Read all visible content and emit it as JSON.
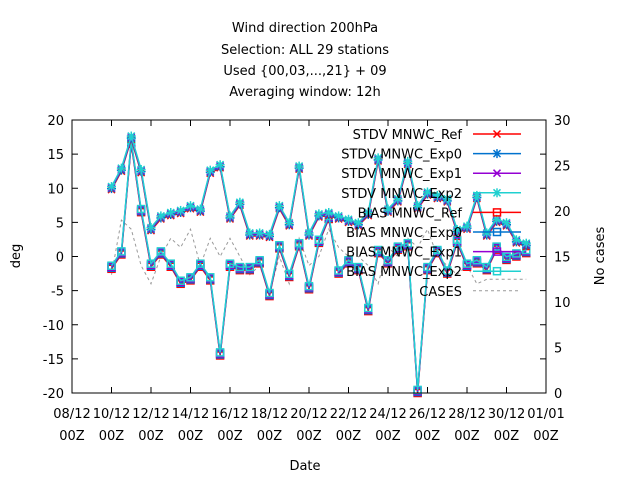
{
  "chart_data": {
    "type": "line",
    "title_lines": [
      "Wind direction 200hPa",
      "Selection: ALL      29 stations",
      "Used {00,03,...,21} + 09",
      "Averaging window: 12h"
    ],
    "xlabel": "Date",
    "ylabel": "deg",
    "y2label": "No cases",
    "ylim": [
      -20,
      20
    ],
    "y2lim": [
      0,
      30
    ],
    "yticks": [
      "20",
      "15",
      "10",
      "5",
      "0",
      "-5",
      "-10",
      "-15",
      "-20"
    ],
    "y2ticks": [
      "30",
      "25",
      "20",
      "15",
      "10",
      "5",
      "0"
    ],
    "xticks": [
      {
        "date": "08/12",
        "time": "00Z"
      },
      {
        "date": "10/12",
        "time": "00Z"
      },
      {
        "date": "12/12",
        "time": "00Z"
      },
      {
        "date": "14/12",
        "time": "00Z"
      },
      {
        "date": "16/12",
        "time": "00Z"
      },
      {
        "date": "18/12",
        "time": "00Z"
      },
      {
        "date": "20/12",
        "time": "00Z"
      },
      {
        "date": "22/12",
        "time": "00Z"
      },
      {
        "date": "24/12",
        "time": "00Z"
      },
      {
        "date": "26/12",
        "time": "00Z"
      },
      {
        "date": "28/12",
        "time": "00Z"
      },
      {
        "date": "30/12",
        "time": "00Z"
      },
      {
        "date": "01/01",
        "time": "00Z"
      }
    ],
    "x_days": [
      2,
      2.5,
      3,
      3.5,
      4,
      4.5,
      5,
      5.5,
      6,
      6.5,
      7,
      7.5,
      8,
      8.5,
      9,
      9.5,
      10,
      10.5,
      11,
      11.5,
      12,
      12.5,
      13,
      13.5,
      14,
      14.5,
      15,
      15.5,
      16,
      16.5,
      17,
      17.5,
      18,
      18.5,
      19,
      19.5,
      20,
      20.5,
      21,
      21.5,
      22,
      22.5,
      23
    ],
    "stdv_values": [
      9.8,
      12.5,
      17.2,
      12.3,
      3.8,
      5.5,
      6.0,
      6.3,
      7.0,
      6.5,
      12.2,
      13.0,
      5.5,
      7.5,
      3.0,
      3.0,
      2.8,
      7.0,
      4.5,
      12.8,
      3.0,
      5.8,
      6.0,
      5.5,
      5.0,
      4.5,
      6.0,
      14.0,
      6.5,
      8.0,
      13.5,
      7.0,
      9.0,
      8.5,
      8.0,
      3.5,
      4.0,
      8.5,
      3.0,
      5.0,
      4.5,
      2.0,
      1.5
    ],
    "bias_values": [
      -1.8,
      0.3,
      16.5,
      6.5,
      -1.5,
      0.3,
      -1.5,
      -4.0,
      -3.5,
      -1.5,
      -3.5,
      -14.5,
      -1.5,
      -2.0,
      -2.0,
      -1.0,
      -5.8,
      1.2,
      -3.0,
      1.5,
      -4.8,
      2.0,
      5.5,
      -2.5,
      -1.0,
      -2.0,
      -8.0,
      0.5,
      -1.0,
      1.0,
      1.5,
      -20.0,
      -2.0,
      0.5,
      -2.5,
      2.0,
      -1.5,
      -1.0,
      -2.0,
      1.0,
      -0.5,
      0.0,
      0.5
    ],
    "cases_values": [
      13,
      19,
      18,
      14,
      12,
      15,
      17,
      16,
      18,
      14,
      17,
      15,
      17,
      15,
      13,
      14,
      11,
      15,
      12,
      17,
      14,
      15,
      18,
      16,
      15,
      15,
      14,
      12,
      16,
      15,
      17,
      16,
      18,
      15,
      14,
      13,
      14,
      12,
      12.5,
      12.5,
      12.5,
      12.5,
      12.5
    ],
    "series": [
      {
        "name": "STDV MNWC_Ref",
        "kind": "stdv",
        "color": "#ff0000",
        "marker": "x"
      },
      {
        "name": "STDV MNWC_Exp0",
        "kind": "stdv",
        "color": "#0072ce",
        "marker": "star"
      },
      {
        "name": "STDV MNWC_Exp1",
        "kind": "stdv",
        "color": "#9400d3",
        "marker": "x"
      },
      {
        "name": "STDV MNWC_Exp2",
        "kind": "stdv",
        "color": "#20d0d0",
        "marker": "star"
      },
      {
        "name": "BIAS MNWC_Ref",
        "kind": "bias",
        "color": "#ff0000",
        "marker": "square"
      },
      {
        "name": "BIAS MNWC_Exp0",
        "kind": "bias",
        "color": "#0072ce",
        "marker": "square"
      },
      {
        "name": "BIAS MNWC_Exp1",
        "kind": "bias",
        "color": "#9400d3",
        "marker": "square"
      },
      {
        "name": "BIAS MNWC_Exp2",
        "kind": "bias",
        "color": "#20d0d0",
        "marker": "square"
      },
      {
        "name": "CASES",
        "kind": "cases",
        "color": "#999999",
        "marker": "none"
      }
    ]
  }
}
